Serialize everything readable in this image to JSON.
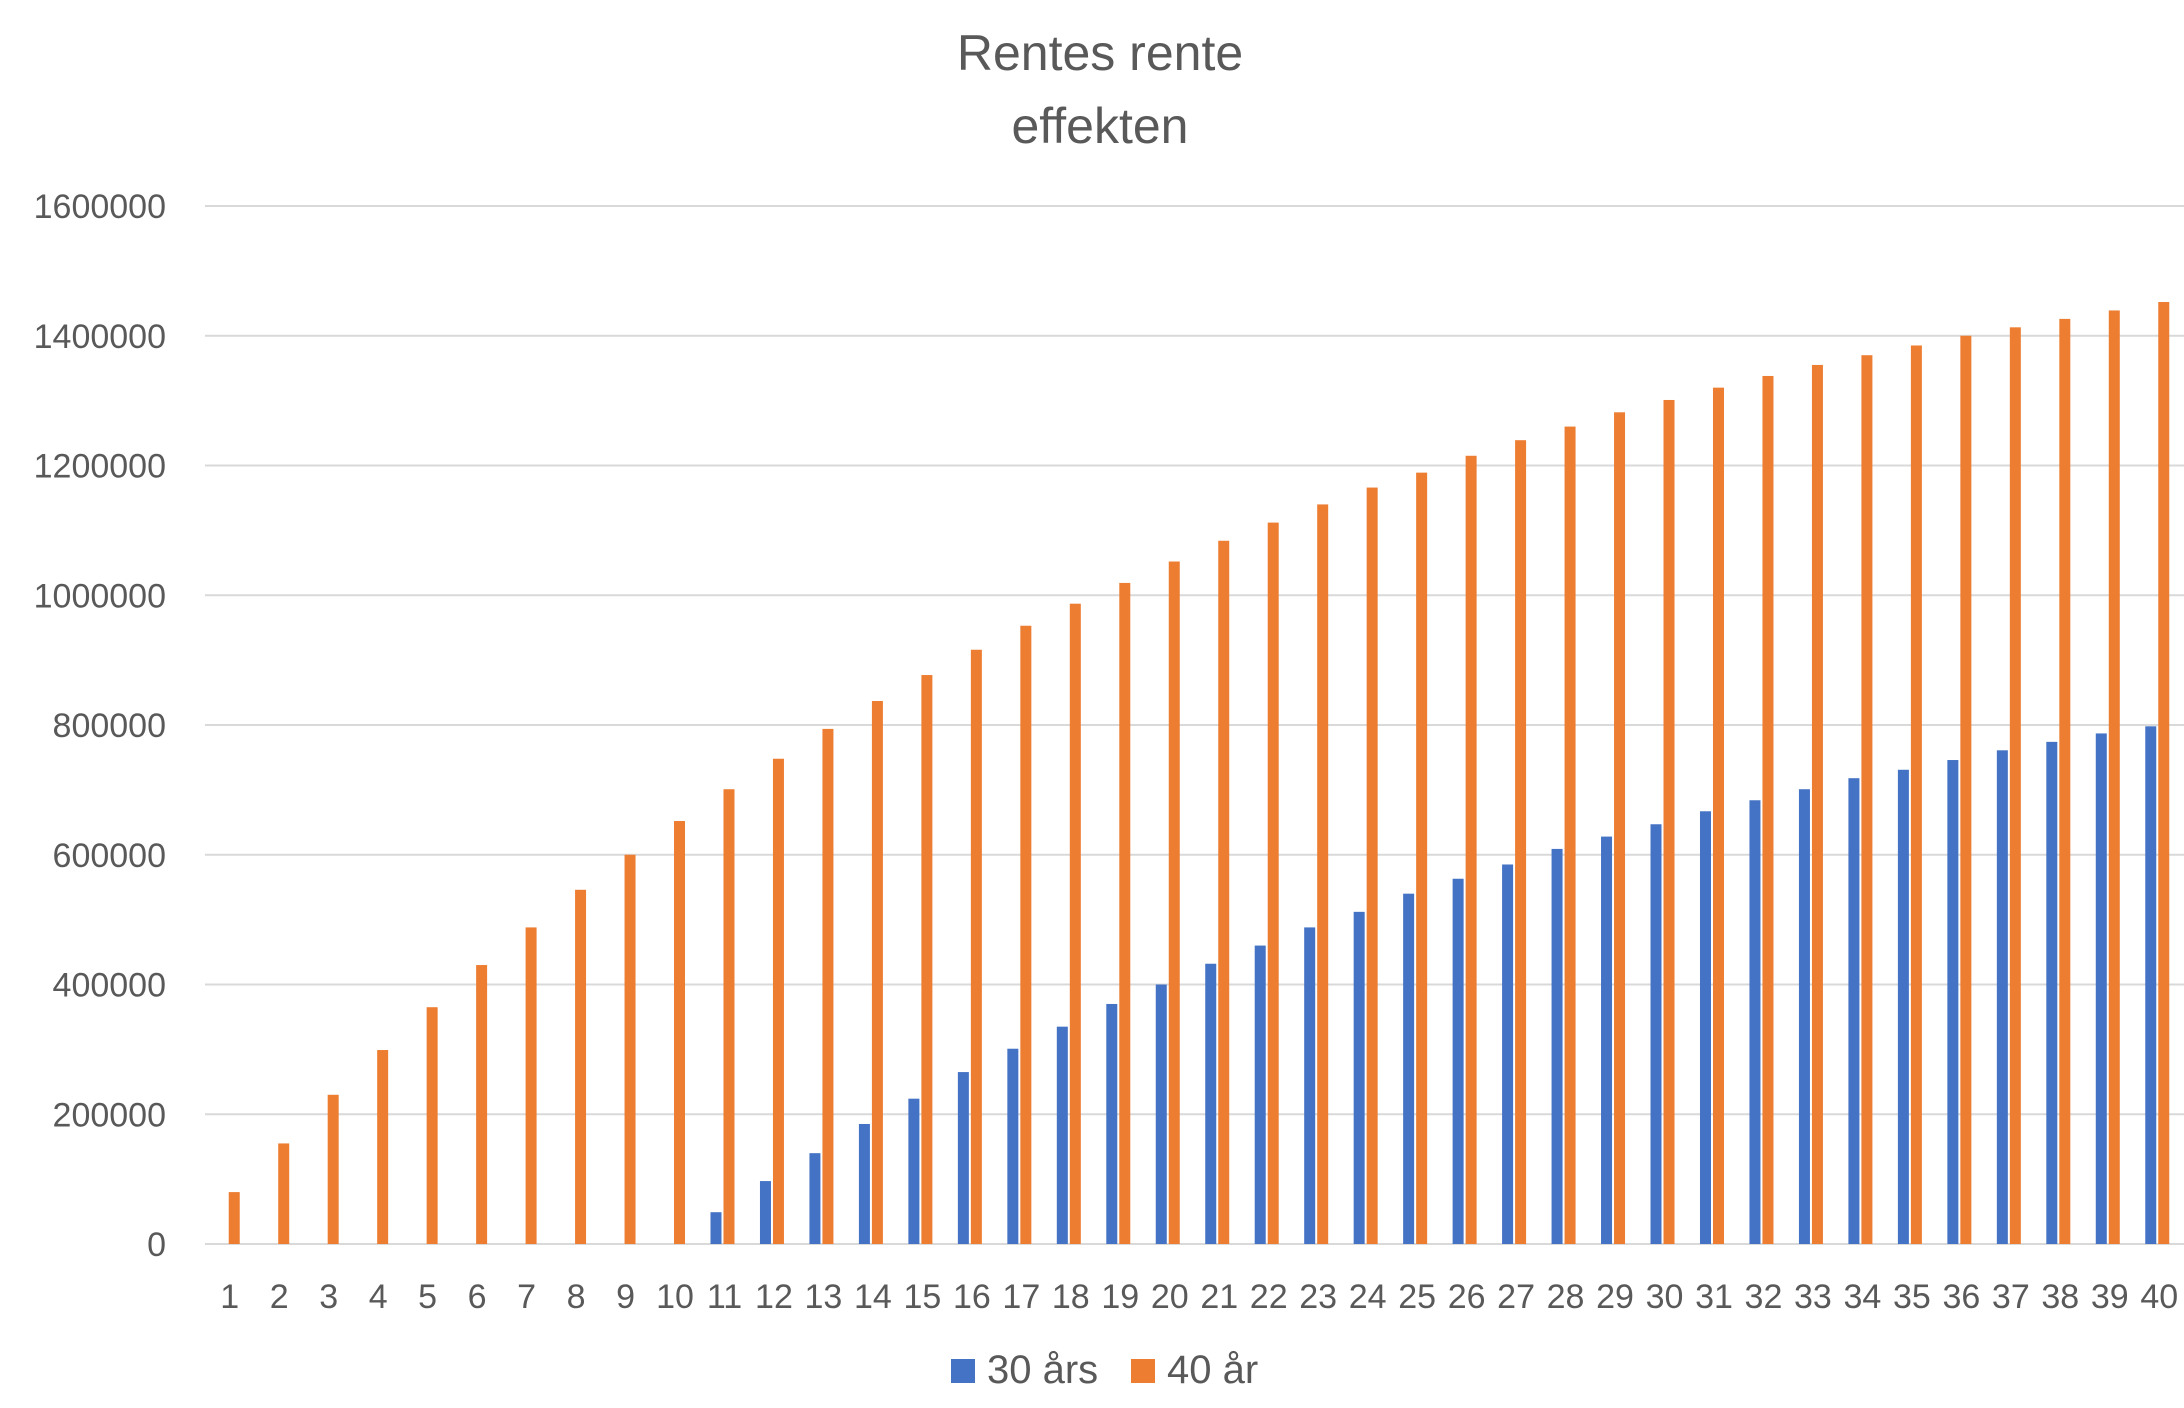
{
  "chart_data": {
    "type": "bar",
    "title_lines": [
      "Rentes rente",
      "effekten"
    ],
    "xlabel": "",
    "ylabel": "",
    "ylim": [
      0,
      1600000
    ],
    "yticks": [
      "0",
      "200000",
      "400000",
      "600000",
      "800000",
      "1000000",
      "1200000",
      "1400000",
      "1600000"
    ],
    "grid": true,
    "legend_position": "bottom",
    "categories": [
      "1",
      "2",
      "3",
      "4",
      "5",
      "6",
      "7",
      "8",
      "9",
      "10",
      "11",
      "12",
      "13",
      "14",
      "15",
      "16",
      "17",
      "18",
      "19",
      "20",
      "21",
      "22",
      "23",
      "24",
      "25",
      "26",
      "27",
      "28",
      "29",
      "30",
      "31",
      "32",
      "33",
      "34",
      "35",
      "36",
      "37",
      "38",
      "39",
      "40"
    ],
    "series": [
      {
        "name": "30 års",
        "color": "#4472C4",
        "values": [
          null,
          null,
          null,
          null,
          null,
          null,
          null,
          null,
          null,
          null,
          49000,
          97000,
          140000,
          185000,
          224000,
          265000,
          301000,
          335000,
          370000,
          400000,
          432000,
          460000,
          488000,
          512000,
          540000,
          563000,
          585000,
          609000,
          628000,
          647000,
          667000,
          684000,
          701000,
          718000,
          731000,
          746000,
          761000,
          774000,
          787000,
          798000
        ]
      },
      {
        "name": "40 år",
        "color": "#ED7D31",
        "values": [
          80000,
          155000,
          230000,
          299000,
          365000,
          430000,
          488000,
          546000,
          600000,
          652000,
          701000,
          748000,
          794000,
          837000,
          877000,
          916000,
          953000,
          987000,
          1019000,
          1052000,
          1084000,
          1112000,
          1140000,
          1166000,
          1189000,
          1215000,
          1239000,
          1260000,
          1282000,
          1301000,
          1320000,
          1338000,
          1355000,
          1370000,
          1385000,
          1400000,
          1413000,
          1426000,
          1439000,
          1452000
        ]
      }
    ]
  }
}
